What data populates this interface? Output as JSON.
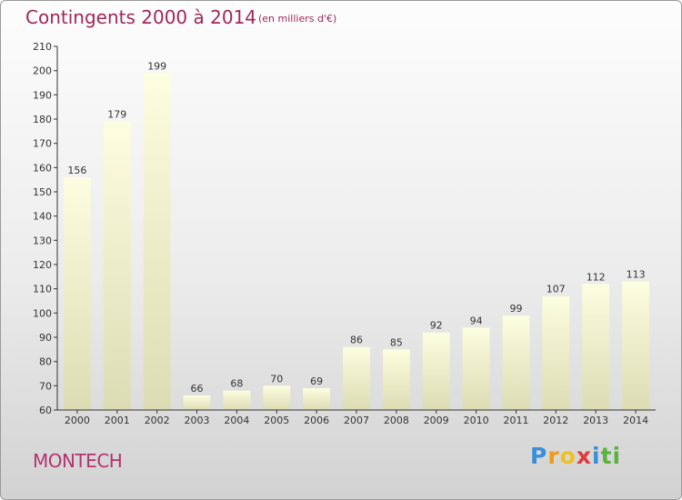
{
  "title": "Contingents 2000 à 2014",
  "subtitle": "(en milliers d'€)",
  "place": "MONTECH",
  "logo": {
    "letters": [
      "P",
      "r",
      "o",
      "x",
      "i",
      "t",
      "i"
    ],
    "colors": [
      "#3a8fd8",
      "#f29a18",
      "#f0c020",
      "#e03a3a",
      "#3a8fd8",
      "#57b53c",
      "#57b53c"
    ]
  },
  "colors": {
    "title": "#a0285a",
    "bar_top": "#fdfde0",
    "bar_bottom": "#dcdcb4"
  },
  "chart_data": {
    "type": "bar",
    "title": "Contingents 2000 à 2014",
    "subtitle": "(en milliers d'€)",
    "categories": [
      "2000",
      "2001",
      "2002",
      "2003",
      "2004",
      "2005",
      "2006",
      "2007",
      "2008",
      "2009",
      "2010",
      "2011",
      "2012",
      "2013",
      "2014"
    ],
    "values": [
      156,
      179,
      199,
      66,
      68,
      70,
      69,
      86,
      85,
      92,
      94,
      99,
      107,
      112,
      113
    ],
    "ylim": [
      60,
      210
    ],
    "yticks": [
      60,
      70,
      80,
      90,
      100,
      110,
      120,
      130,
      140,
      150,
      160,
      170,
      180,
      190,
      200,
      210
    ],
    "grid": false,
    "legend": "none"
  }
}
